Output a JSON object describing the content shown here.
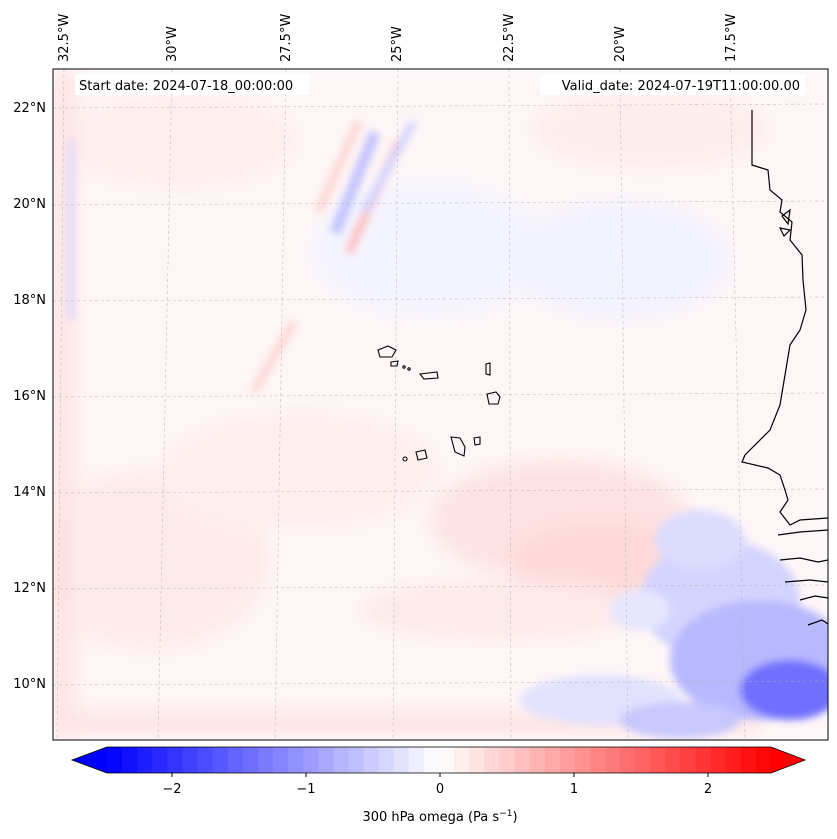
{
  "map": {
    "start_label": "Start date: 2024-07-18_00:00:00",
    "valid_label": "Valid_date: 2024-07-19T11:00:00.00",
    "lon_labels": [
      "32.5°W",
      "30°W",
      "27.5°W",
      "25°W",
      "22.5°W",
      "20°W",
      "17.5°W"
    ],
    "lat_labels": [
      "22°N",
      "20°N",
      "18°N",
      "16°N",
      "14°N",
      "12°N",
      "10°N"
    ]
  },
  "colorbar": {
    "label": "300 hPa omega (Pa s",
    "label_sup": "−1",
    "label_end": ")",
    "ticks": [
      "−2",
      "−1",
      "0",
      "1",
      "2"
    ],
    "min": -2.75,
    "max": 2.75,
    "levels": 44,
    "color_neg": "#0000ff",
    "color_zero": "#ffffff",
    "color_pos": "#ff0000"
  }
}
